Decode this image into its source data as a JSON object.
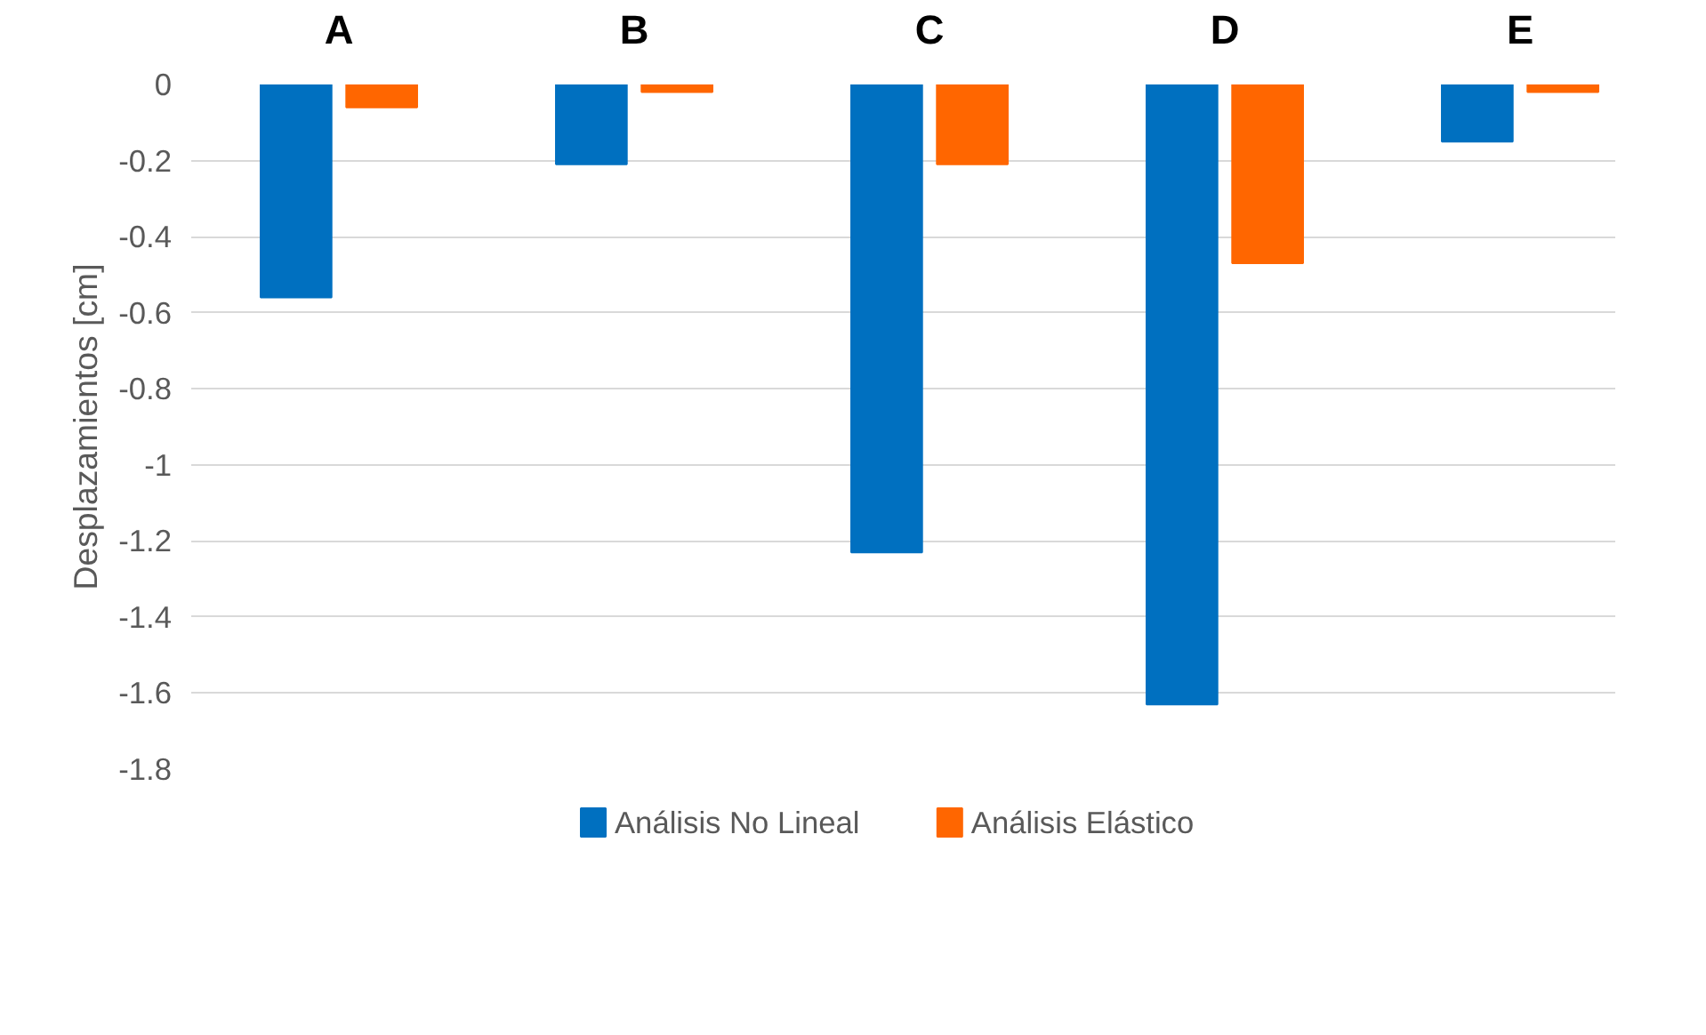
{
  "chart_data": {
    "type": "bar",
    "categories": [
      "A",
      "B",
      "C",
      "D",
      "E"
    ],
    "ylabel": "Desplazamientos [cm]",
    "series": [
      {
        "name": "Análisis No Lineal",
        "color": "#0070c0",
        "values": [
          -0.56,
          -0.21,
          -1.23,
          -1.63,
          -0.15
        ]
      },
      {
        "name": "Análisis Elástico",
        "color": "#ff6600",
        "values": [
          -0.06,
          -0.02,
          -0.21,
          -0.47,
          -0.02
        ]
      }
    ],
    "ylim": [
      -1.8,
      0
    ],
    "yticks": [
      0,
      -0.2,
      -0.4,
      -0.6,
      -0.8,
      -1,
      -1.2,
      -1.4,
      -1.6,
      -1.8
    ],
    "grid": "y",
    "legend": "bottom"
  }
}
